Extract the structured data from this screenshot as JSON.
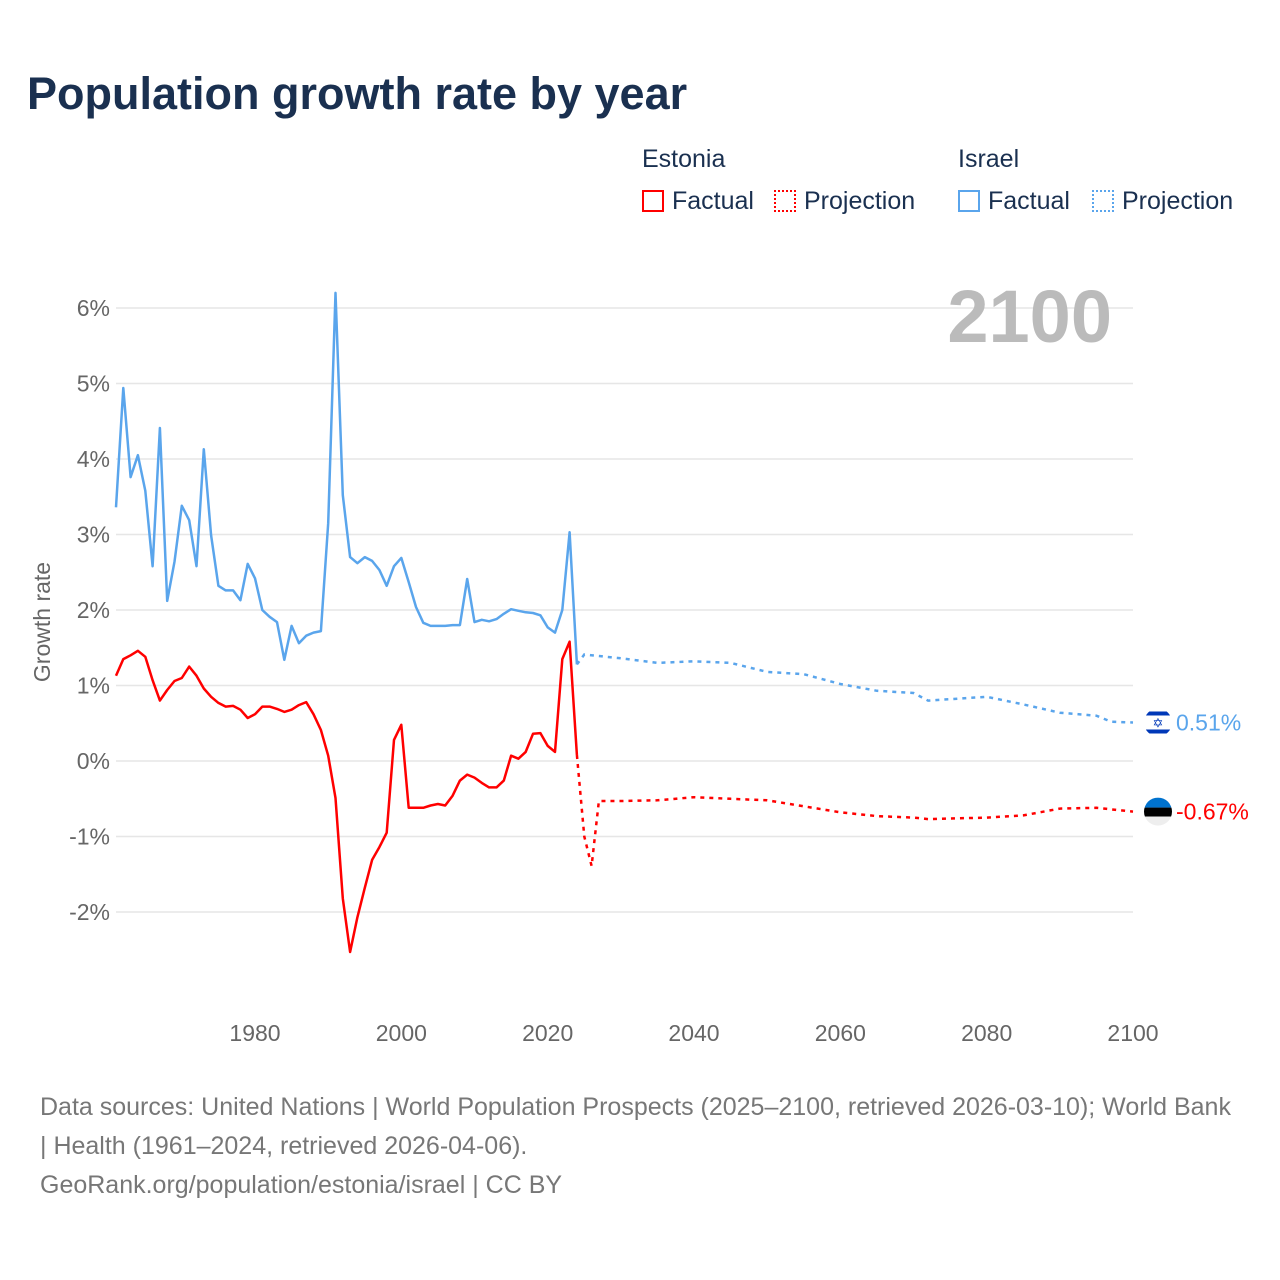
{
  "title": "Population growth rate by year",
  "legend": [
    {
      "country": "Estonia",
      "factual": "Factual",
      "projection": "Projection",
      "color": "#ff0000"
    },
    {
      "country": "Israel",
      "factual": "Factual",
      "projection": "Projection",
      "color": "#5aa5ec"
    }
  ],
  "footer": {
    "line1": "Data sources: United Nations | World Population Prospects (2025–2100, retrieved 2026-03-10); World Bank | Health (1961–2024, retrieved 2026-04-06).",
    "line2": "GeoRank.org/population/estonia/israel | CC BY"
  },
  "chart_data": {
    "type": "line",
    "title": "Population growth rate by year",
    "year_label": "2100",
    "xlabel": "",
    "ylabel": "Growth rate",
    "xlim": [
      1961,
      2100
    ],
    "ylim": [
      -3,
      6.5
    ],
    "xticks": [
      1980,
      2000,
      2020,
      2040,
      2060,
      2080,
      2100
    ],
    "yticks": [
      -2,
      -1,
      0,
      1,
      2,
      3,
      4,
      5,
      6
    ],
    "ytick_labels": [
      "-2%",
      "-1%",
      "0%",
      "1%",
      "2%",
      "3%",
      "4%",
      "5%",
      "6%"
    ],
    "grid": true,
    "series": [
      {
        "name": "Estonia",
        "color": "#ff0000",
        "end_label": "-0.67%",
        "factual": {
          "x_start": 1961,
          "values": [
            1.13,
            1.35,
            1.4,
            1.46,
            1.38,
            1.07,
            0.8,
            0.94,
            1.06,
            1.1,
            1.25,
            1.13,
            0.96,
            0.85,
            0.77,
            0.72,
            0.73,
            0.68,
            0.57,
            0.62,
            0.72,
            0.72,
            0.69,
            0.65,
            0.68,
            0.74,
            0.78,
            0.62,
            0.41,
            0.07,
            -0.49,
            -1.82,
            -2.53,
            -2.07,
            -1.68,
            -1.31,
            -1.14,
            -0.95,
            0.28,
            0.48,
            -0.62,
            -0.62,
            -0.62,
            -0.59,
            -0.57,
            -0.59,
            -0.46,
            -0.26,
            -0.18,
            -0.22,
            -0.29,
            -0.35,
            -0.35,
            -0.26,
            0.07,
            0.03,
            0.12,
            0.36,
            0.37,
            0.2,
            0.12,
            1.35,
            1.58,
            0.08
          ]
        },
        "projection": {
          "x": [
            2024,
            2025,
            2026,
            2027,
            2030,
            2035,
            2040,
            2045,
            2050,
            2055,
            2060,
            2065,
            2070,
            2072,
            2080,
            2085,
            2090,
            2095,
            2098,
            2100
          ],
          "values": [
            0.08,
            -1.0,
            -1.39,
            -0.53,
            -0.53,
            -0.52,
            -0.48,
            -0.5,
            -0.52,
            -0.6,
            -0.68,
            -0.73,
            -0.75,
            -0.77,
            -0.75,
            -0.72,
            -0.63,
            -0.62,
            -0.65,
            -0.67
          ]
        }
      },
      {
        "name": "Israel",
        "color": "#5aa5ec",
        "end_label": "0.51%",
        "factual": {
          "x_start": 1961,
          "values": [
            3.36,
            4.94,
            3.76,
            4.05,
            3.58,
            2.58,
            4.41,
            2.12,
            2.64,
            3.38,
            3.19,
            2.58,
            4.13,
            2.99,
            2.32,
            2.26,
            2.26,
            2.13,
            2.61,
            2.42,
            2.0,
            1.91,
            1.84,
            1.34,
            1.79,
            1.56,
            1.66,
            1.7,
            1.72,
            3.15,
            6.2,
            3.52,
            2.7,
            2.62,
            2.7,
            2.65,
            2.53,
            2.32,
            2.58,
            2.69,
            2.37,
            2.04,
            1.83,
            1.79,
            1.79,
            1.79,
            1.8,
            1.8,
            2.41,
            1.84,
            1.87,
            1.85,
            1.88,
            1.95,
            2.01,
            1.99,
            1.97,
            1.96,
            1.93,
            1.77,
            1.7,
            2.0,
            3.03,
            1.28
          ]
        },
        "projection": {
          "x": [
            2024,
            2025,
            2030,
            2035,
            2040,
            2045,
            2050,
            2055,
            2060,
            2065,
            2070,
            2072,
            2080,
            2085,
            2090,
            2095,
            2097,
            2100
          ],
          "values": [
            1.28,
            1.41,
            1.36,
            1.3,
            1.32,
            1.3,
            1.18,
            1.15,
            1.02,
            0.93,
            0.9,
            0.8,
            0.85,
            0.75,
            0.64,
            0.6,
            0.52,
            0.51
          ]
        }
      }
    ]
  }
}
